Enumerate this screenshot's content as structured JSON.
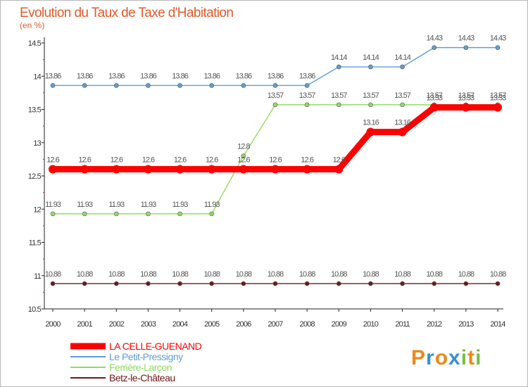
{
  "chart_data": {
    "type": "line",
    "title": "Evolution du Taux de Taxe d'Habitation",
    "subtitle": "(en %)",
    "xlabel": "",
    "ylabel": "",
    "x": [
      "2000",
      "2001",
      "2002",
      "2003",
      "2004",
      "2005",
      "2006",
      "2007",
      "2008",
      "2009",
      "2010",
      "2011",
      "2012",
      "2013",
      "2014"
    ],
    "ylim": [
      10.5,
      14.5
    ],
    "yticks": [
      "10.5",
      "11",
      "11.5",
      "12",
      "12.5",
      "13",
      "13.5",
      "14",
      "14.5"
    ],
    "grid": false,
    "legend": "bottom-left",
    "series": [
      {
        "name": "LA CELLE-GUENAND",
        "color": "#ff0000",
        "values": [
          12.6,
          12.6,
          12.6,
          12.6,
          12.6,
          12.6,
          12.6,
          12.6,
          12.6,
          12.6,
          13.16,
          13.16,
          13.53,
          13.53,
          13.53
        ],
        "labels": [
          "12.6",
          "12.6",
          "12.6",
          "12.6",
          "12.6",
          "12.6",
          "12.6",
          "12.6",
          "12.6",
          "12.6",
          "13.16",
          "13.16",
          "13.53",
          "13.53",
          "13.53"
        ]
      },
      {
        "name": "Le Petit-Pressigny",
        "color": "#5e9fd6",
        "values": [
          13.86,
          13.86,
          13.86,
          13.86,
          13.86,
          13.86,
          13.86,
          13.86,
          13.86,
          14.14,
          14.14,
          14.14,
          14.43,
          14.43,
          14.43
        ],
        "labels": [
          "13.86",
          "13.86",
          "13.86",
          "13.86",
          "13.86",
          "13.86",
          "13.86",
          "13.86",
          "13.86",
          "14.14",
          "14.14",
          "14.14",
          "14.43",
          "14.43",
          "14.43"
        ]
      },
      {
        "name": "Ferrière-Larçon",
        "color": "#90dd60",
        "values": [
          11.93,
          11.93,
          11.93,
          11.93,
          11.93,
          11.93,
          12.8,
          13.57,
          13.57,
          13.57,
          13.57,
          13.57,
          13.57,
          13.57,
          13.57
        ],
        "labels": [
          "11.93",
          "11.93",
          "11.93",
          "11.93",
          "11.93",
          "11.93",
          "12.8",
          "13.57",
          "13.57",
          "13.57",
          "13.57",
          "13.57",
          "13.57",
          "13.57",
          "13.57"
        ]
      },
      {
        "name": "Betz-le-Château",
        "color": "#6b1a1a",
        "values": [
          10.88,
          10.88,
          10.88,
          10.88,
          10.88,
          10.88,
          10.88,
          10.88,
          10.88,
          10.88,
          10.88,
          10.88,
          10.88,
          10.88,
          10.88
        ],
        "labels": [
          "10.88",
          "10.88",
          "10.88",
          "10.88",
          "10.88",
          "10.88",
          "10.88",
          "10.88",
          "10.88",
          "10.88",
          "10.88",
          "10.88",
          "10.88",
          "10.88",
          "10.88"
        ]
      }
    ]
  },
  "brand": {
    "letters": [
      "P",
      "r",
      "o",
      "x",
      "i",
      "t",
      "i"
    ],
    "colors": [
      "#e98a1c",
      "#3a8fd6",
      "#e98a1c",
      "#3a8fd6",
      "#76c043",
      "#e98a1c",
      "#76c043"
    ]
  }
}
